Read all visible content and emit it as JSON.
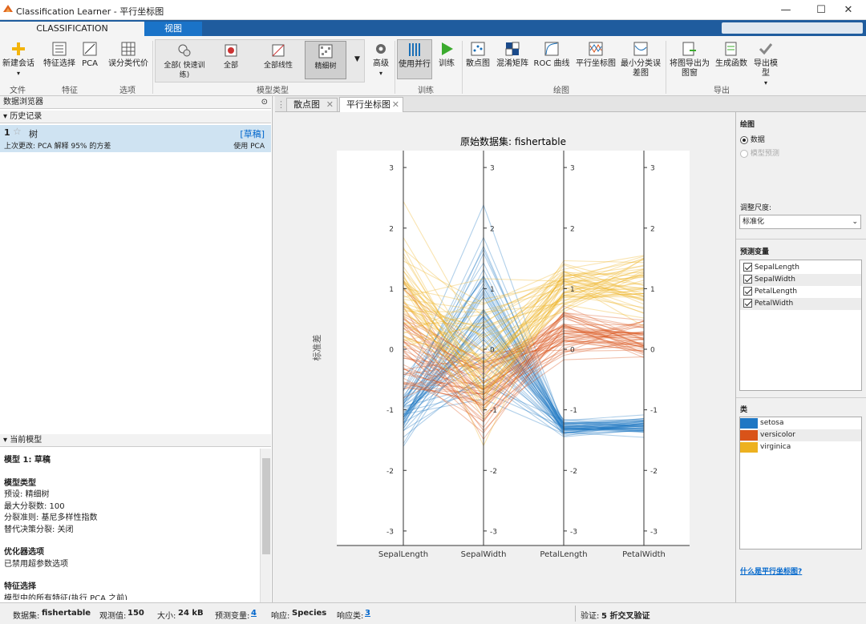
{
  "window": {
    "title": "Classification Learner - 平行坐标图"
  },
  "ribbon": {
    "tabs": [
      "CLASSIFICATION LEARNER",
      "视图"
    ],
    "buttons": {
      "new_session": "新建会话",
      "feature_select": "特征选择",
      "pca": "PCA",
      "misclass_cost": "误分类代价",
      "all_quick": "全部(\n快速训练)",
      "all": "全部",
      "all_linear": "全部线性",
      "fine_tree": "精细树",
      "advanced": "高级",
      "use_parallel": "使用并行",
      "train": "训练",
      "scatter": "散点图",
      "confusion": "混淆矩阵",
      "roc": "ROC 曲线",
      "parallel": "平行坐标图",
      "min_error": "最小分类误差图",
      "export_plot": "将图导出为图窗",
      "gen_func": "生成函数",
      "export_model": "导出模型"
    },
    "groups": {
      "file": "文件",
      "features": "特征",
      "options": "选项",
      "model_type": "模型类型",
      "training": "训练",
      "plots": "绘图",
      "export": "导出"
    }
  },
  "data_browser": {
    "title": "数据浏览器",
    "history_title": "历史记录",
    "model": {
      "num": "1",
      "name": "树",
      "status": "[草稿]",
      "change": "上次更改:  PCA 解释 95% 的方差",
      "pca": "使用 PCA"
    }
  },
  "current_model": {
    "title": "当前模型",
    "lines": [
      "模型 1: 草稿",
      "",
      "模型类型",
      "预设: 精细树",
      "最大分裂数: 100",
      "分裂准则: 基尼多样性指数",
      "替代决策分裂: 关闭",
      "",
      "优化器选项",
      "已禁用超参数选项",
      "",
      "特征选择",
      "模型中的所有特征(执行 PCA 之前)"
    ]
  },
  "doc_tabs": [
    "散点图",
    "平行坐标图"
  ],
  "chart_data": {
    "type": "parallel",
    "title": "原始数据集: fishertable",
    "ylabel": "标准差",
    "axes": [
      "SepalLength",
      "SepalWidth",
      "PetalLength",
      "PetalWidth"
    ],
    "ylim": [
      -3.2,
      3.2
    ],
    "ticks": [
      -3,
      -2,
      -1,
      0,
      1,
      2,
      3
    ],
    "classes": [
      {
        "name": "setosa",
        "color": "#1f77c4",
        "mean": [
          -1.01,
          0.85,
          -1.3,
          -1.25
        ],
        "sd": [
          0.35,
          0.9,
          0.1,
          0.1
        ]
      },
      {
        "name": "versicolor",
        "color": "#d95319",
        "mean": [
          0.11,
          -0.66,
          0.28,
          0.17
        ],
        "sd": [
          0.62,
          0.72,
          0.27,
          0.26
        ]
      },
      {
        "name": "virginica",
        "color": "#edb120",
        "mean": [
          0.9,
          -0.19,
          1.02,
          1.08
        ],
        "sd": [
          0.76,
          0.74,
          0.31,
          0.36
        ]
      }
    ],
    "n_per_class": 50
  },
  "right": {
    "plot_title": "绘图",
    "radio_data": "数据",
    "radio_pred": "模型预测",
    "scale_label": "调整尺度:",
    "scale_value": "标准化",
    "pred_title": "预测变量",
    "pred_vars": [
      "SepalLength",
      "SepalWidth",
      "PetalLength",
      "PetalWidth"
    ],
    "class_title": "类",
    "help_link": "什么是平行坐标图?"
  },
  "status": {
    "dataset_label": "数据集:",
    "dataset": "fishertable",
    "obs_label": "观测值:",
    "obs": "150",
    "size_label": "大小:",
    "size": "24 kB",
    "pred_label": "预测变量:",
    "pred": "4",
    "resp_label": "响应:",
    "resp": "Species",
    "resp_classes_label": "响应类:",
    "resp_classes": "3",
    "valid_label": "验证:",
    "valid": "5 折交叉验证"
  }
}
